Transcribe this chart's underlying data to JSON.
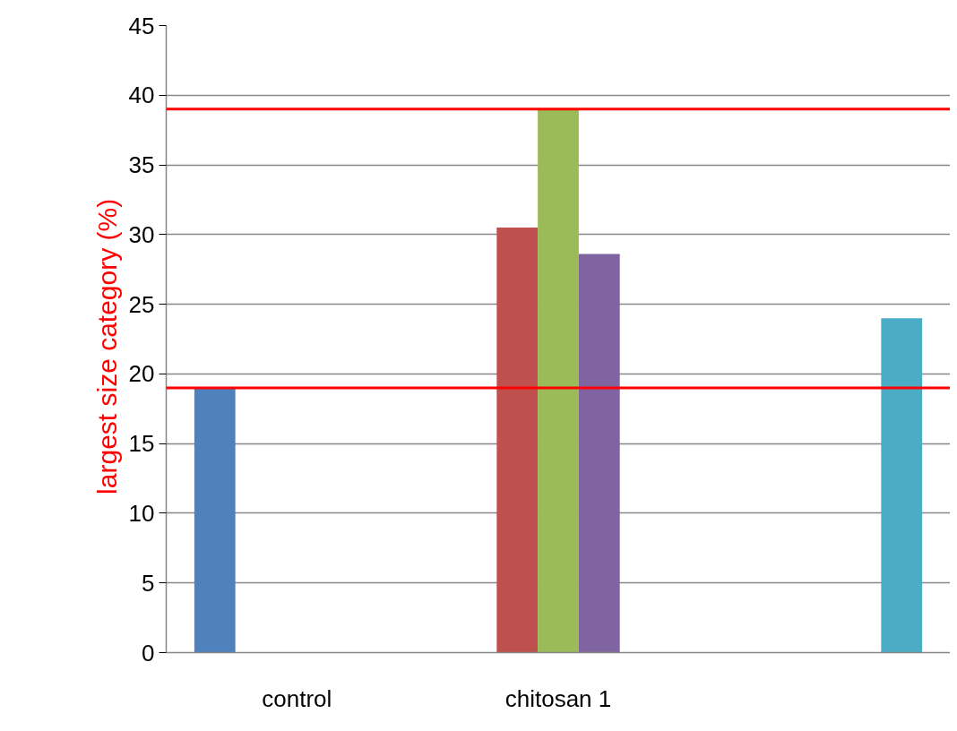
{
  "chart_data": {
    "type": "bar",
    "ylabel": "largest  size  category (%)",
    "categories": [
      "control",
      "chitosan 1",
      null
    ],
    "series": [
      {
        "color": "#4f81bd",
        "values": [
          19,
          null,
          null
        ]
      },
      {
        "color": "#c0504d",
        "values": [
          null,
          30.5,
          null
        ]
      },
      {
        "color": "#9bbb59",
        "values": [
          null,
          39,
          null
        ]
      },
      {
        "color": "#8064a2",
        "values": [
          null,
          28.6,
          null
        ]
      },
      {
        "color": "#4bacc6",
        "values": [
          null,
          null,
          24
        ]
      }
    ],
    "ylim": [
      0,
      45
    ],
    "yticks": [
      0,
      5,
      10,
      15,
      20,
      25,
      30,
      35,
      40,
      45
    ],
    "grid": "y",
    "ref_lines": [
      {
        "axis": "y",
        "value": 19,
        "color": "#ff0000"
      },
      {
        "axis": "y",
        "value": 39,
        "color": "#ff0000"
      }
    ]
  }
}
